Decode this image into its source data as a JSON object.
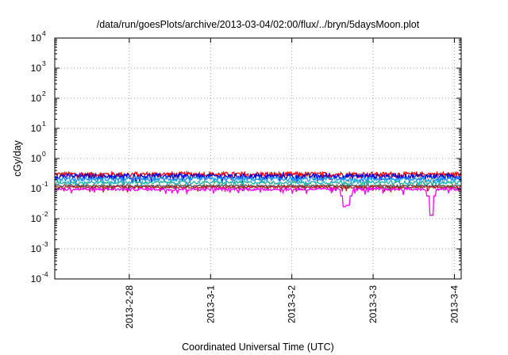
{
  "chart_data": {
    "type": "line",
    "title": "/data/run/goesPlots/archive/2013-03-04/02:00/flux/../bryn/5daysMoon.plot",
    "xlabel": "Coordinated Universal Time (UTC)",
    "ylabel": "cGy/day",
    "yscale": "log",
    "ylim": [
      0.0001,
      10000
    ],
    "y_ticks": [
      {
        "base": "10",
        "exp": "-4",
        "value": 0.0001
      },
      {
        "base": "10",
        "exp": "-3",
        "value": 0.001
      },
      {
        "base": "10",
        "exp": "-2",
        "value": 0.01
      },
      {
        "base": "10",
        "exp": "-1",
        "value": 0.1
      },
      {
        "base": "10",
        "exp": "0",
        "value": 1
      },
      {
        "base": "10",
        "exp": "1",
        "value": 10
      },
      {
        "base": "10",
        "exp": "2",
        "value": 100
      },
      {
        "base": "10",
        "exp": "3",
        "value": 1000
      },
      {
        "base": "10",
        "exp": "4",
        "value": 10000
      }
    ],
    "x_start": "2013-02-27 02:00",
    "x_end": "2013-03-04 02:00",
    "x_ticks": [
      {
        "label": "2013-2-28",
        "time": "2013-02-28 00:00"
      },
      {
        "label": "2013-3-1",
        "time": "2013-03-01 00:00"
      },
      {
        "label": "2013-3-2",
        "time": "2013-03-02 00:00"
      },
      {
        "label": "2013-3-3",
        "time": "2013-03-03 00:00"
      },
      {
        "label": "2013-3-4",
        "time": "2013-03-04 00:00"
      }
    ],
    "grid": true,
    "legend": "none",
    "series": [
      {
        "color": "#ff0000",
        "base": 0.3,
        "noise": 0.18
      },
      {
        "color": "#0000dd",
        "base": 0.26,
        "noise": 0.2
      },
      {
        "color": "#1e90ff",
        "base": 0.21,
        "noise": 0.16
      },
      {
        "color": "#20b2aa",
        "base": 0.16,
        "noise": 0.12
      },
      {
        "color": "#555555",
        "base": 0.125,
        "noise": 0.08
      },
      {
        "color": "#b22222",
        "base": 0.112,
        "noise": 0.08
      },
      {
        "color": "#ff00ff",
        "base": 0.095,
        "noise": 0.1,
        "dips": [
          {
            "time": "2013-03-02 15:40",
            "value": 0.025
          },
          {
            "time": "2013-03-02 16:30",
            "value": 0.028
          },
          {
            "time": "2013-03-03 17:10",
            "value": 0.013
          }
        ]
      }
    ]
  }
}
